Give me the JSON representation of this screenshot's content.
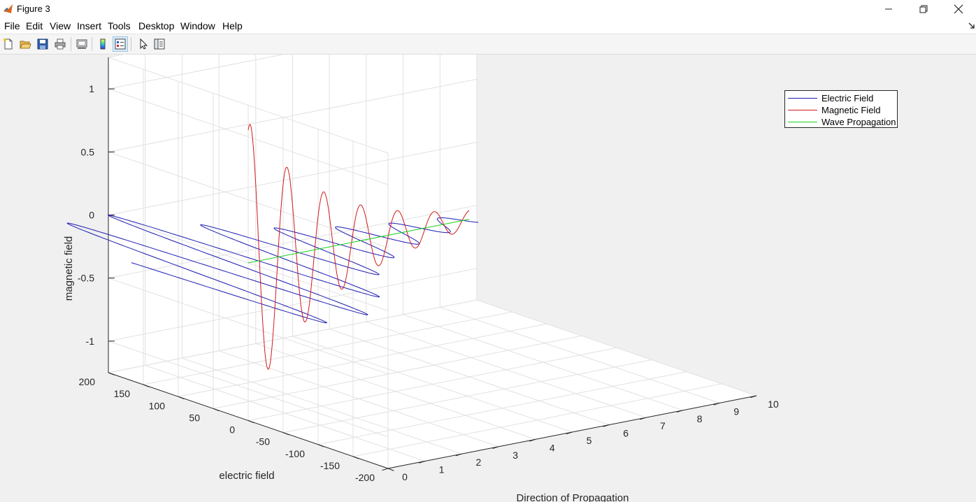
{
  "window": {
    "title": "Figure 3",
    "controls": [
      "minimize",
      "restore",
      "close"
    ]
  },
  "menu": [
    "File",
    "Edit",
    "View",
    "Insert",
    "Tools",
    "Desktop",
    "Window",
    "Help"
  ],
  "toolbar": {
    "buttons": [
      "new-figure-icon",
      "open-file-icon",
      "save-icon",
      "print-icon",
      "link-plot-icon",
      "colorbar-icon",
      "legend-icon",
      "edit-plot-arrow-icon",
      "property-inspector-icon"
    ],
    "active": "legend-icon"
  },
  "legend": {
    "placement": "top-right",
    "entries": [
      {
        "label": "Electric Field",
        "color": "#1b1bb4"
      },
      {
        "label": "Magnetic Field",
        "color": "#d01b1b"
      },
      {
        "label": "Wave Propagation",
        "color": "#1bd01b"
      }
    ]
  },
  "chart_data": {
    "type": "line",
    "projection": "3d",
    "xlabel": "Direction of Propagation",
    "ylabel": "electric field",
    "zlabel": "magnetic field",
    "xlim": [
      0,
      10
    ],
    "ylim": [
      -200,
      200
    ],
    "zlim": [
      -1.25,
      1.25
    ],
    "xticks": [
      "0",
      "1",
      "2",
      "3",
      "4",
      "5",
      "6",
      "7",
      "8",
      "9",
      "10"
    ],
    "yticks": [
      "-200",
      "-150",
      "-100",
      "-50",
      "0",
      "50",
      "100",
      "150",
      "200"
    ],
    "zticks": [
      "-1",
      "-0.5",
      "0",
      "0.5",
      "1"
    ],
    "grid": true,
    "series": [
      {
        "name": "Electric Field",
        "color": "#1b1bb4",
        "x_range": [
          -2,
          6
        ],
        "x_samples": 800,
        "cycles_per_unit": 0.9,
        "amplitude": 200,
        "decay": 0.42,
        "plane": "y"
      },
      {
        "name": "Magnetic Field",
        "color": "#d01b1b",
        "x_range": [
          0,
          6
        ],
        "x_samples": 800,
        "cycles_per_unit": 1.0,
        "amplitude": 1.12,
        "decay": 0.45,
        "plane": "z"
      },
      {
        "name": "Wave Propagation",
        "color": "#1bd01b",
        "x_range": [
          0,
          6
        ],
        "x_samples": 2,
        "plane": "axis"
      }
    ]
  }
}
